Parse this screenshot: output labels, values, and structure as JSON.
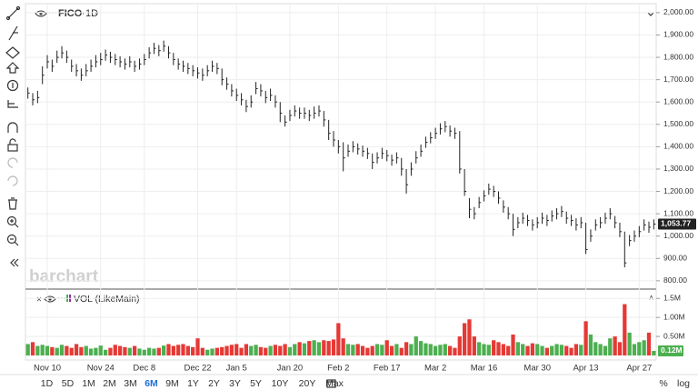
{
  "chart_data": [
    {
      "type": "ohlc",
      "symbol": "FICO",
      "interval": "1D",
      "color": "#222222",
      "grid": true,
      "ylim": [
        771,
        2024
      ],
      "yticks": [
        {
          "value": 800,
          "label": "800.00"
        },
        {
          "value": 900,
          "label": "900.00"
        },
        {
          "value": 1000,
          "label": "1,000.00"
        },
        {
          "value": 1100,
          "label": "1,100.00"
        },
        {
          "value": 1200,
          "label": "1,200.00"
        },
        {
          "value": 1300,
          "label": "1,300.00"
        },
        {
          "value": 1400,
          "label": "1,400.00"
        },
        {
          "value": 1500,
          "label": "1,500.00"
        },
        {
          "value": 1600,
          "label": "1,600.00"
        },
        {
          "value": 1700,
          "label": "1,700.00"
        },
        {
          "value": 1800,
          "label": "1,800.00"
        },
        {
          "value": 1900,
          "label": "1,900.00"
        },
        {
          "value": 2000,
          "label": "2,000.00"
        }
      ],
      "last_value_label": "1,053.77",
      "high": [
        1665,
        1640,
        1650,
        1760,
        1810,
        1790,
        1830,
        1850,
        1830,
        1790,
        1770,
        1750,
        1770,
        1790,
        1810,
        1820,
        1835,
        1825,
        1815,
        1805,
        1795,
        1805,
        1785,
        1795,
        1815,
        1845,
        1865,
        1855,
        1875,
        1850,
        1820,
        1795,
        1785,
        1775,
        1765,
        1755,
        1750,
        1765,
        1785,
        1775,
        1750,
        1710,
        1680,
        1660,
        1640,
        1610,
        1630,
        1690,
        1680,
        1650,
        1660,
        1630,
        1600,
        1540,
        1565,
        1585,
        1575,
        1575,
        1565,
        1580,
        1585,
        1560,
        1520,
        1470,
        1430,
        1420,
        1410,
        1425,
        1415,
        1405,
        1395,
        1370,
        1375,
        1395,
        1385,
        1365,
        1375,
        1350,
        1300,
        1330,
        1380,
        1410,
        1445,
        1465,
        1485,
        1505,
        1515,
        1495,
        1485,
        1470,
        1300,
        1170,
        1130,
        1175,
        1205,
        1235,
        1225,
        1200,
        1160,
        1130,
        1100,
        1085,
        1105,
        1095,
        1075,
        1085,
        1105,
        1095,
        1115,
        1125,
        1135,
        1110,
        1095,
        1080,
        1085,
        1060,
        1030,
        1075,
        1085,
        1105,
        1125,
        1090,
        1060,
        1020,
        1005,
        1025,
        1045,
        1075,
        1065,
        1075
      ],
      "low": [
        1615,
        1585,
        1595,
        1680,
        1750,
        1735,
        1775,
        1795,
        1775,
        1735,
        1715,
        1695,
        1715,
        1735,
        1755,
        1765,
        1785,
        1775,
        1765,
        1755,
        1745,
        1755,
        1735,
        1745,
        1765,
        1795,
        1815,
        1805,
        1825,
        1795,
        1765,
        1745,
        1735,
        1725,
        1715,
        1705,
        1695,
        1715,
        1735,
        1725,
        1675,
        1655,
        1625,
        1605,
        1585,
        1555,
        1575,
        1635,
        1625,
        1595,
        1605,
        1575,
        1510,
        1490,
        1515,
        1535,
        1525,
        1525,
        1515,
        1525,
        1535,
        1490,
        1430,
        1400,
        1370,
        1290,
        1355,
        1375,
        1365,
        1355,
        1345,
        1300,
        1325,
        1345,
        1335,
        1315,
        1325,
        1270,
        1190,
        1270,
        1325,
        1355,
        1395,
        1415,
        1435,
        1455,
        1465,
        1445,
        1435,
        1280,
        1180,
        1080,
        1075,
        1125,
        1155,
        1185,
        1175,
        1145,
        1105,
        1075,
        1000,
        1035,
        1055,
        1045,
        1025,
        1035,
        1055,
        1045,
        1065,
        1075,
        1085,
        1055,
        1045,
        1025,
        1035,
        920,
        975,
        1025,
        1035,
        1055,
        1075,
        1035,
        995,
        860,
        955,
        975,
        995,
        1025,
        1015,
        1030
      ],
      "close": [
        1640,
        1610,
        1620,
        1720,
        1780,
        1760,
        1800,
        1820,
        1800,
        1760,
        1740,
        1720,
        1740,
        1760,
        1780,
        1790,
        1810,
        1800,
        1790,
        1780,
        1770,
        1780,
        1760,
        1770,
        1790,
        1820,
        1840,
        1830,
        1850,
        1820,
        1790,
        1770,
        1760,
        1750,
        1740,
        1730,
        1720,
        1740,
        1760,
        1750,
        1700,
        1680,
        1650,
        1630,
        1610,
        1580,
        1600,
        1660,
        1650,
        1620,
        1630,
        1600,
        1550,
        1510,
        1540,
        1560,
        1550,
        1550,
        1540,
        1550,
        1560,
        1520,
        1460,
        1430,
        1400,
        1350,
        1380,
        1400,
        1390,
        1380,
        1370,
        1330,
        1350,
        1370,
        1360,
        1340,
        1350,
        1300,
        1230,
        1300,
        1350,
        1380,
        1420,
        1440,
        1460,
        1480,
        1490,
        1470,
        1460,
        1300,
        1200,
        1120,
        1100,
        1150,
        1180,
        1210,
        1200,
        1170,
        1130,
        1100,
        1030,
        1060,
        1080,
        1070,
        1050,
        1060,
        1080,
        1070,
        1090,
        1100,
        1110,
        1080,
        1070,
        1050,
        1060,
        940,
        1000,
        1050,
        1060,
        1080,
        1100,
        1060,
        1020,
        880,
        980,
        1000,
        1020,
        1050,
        1040,
        1053.77
      ]
    },
    {
      "type": "bar",
      "title": "VOL (LikeMain)",
      "up_color": "#4caf50",
      "down_color": "#e53935",
      "ylim": [
        0,
        1650000
      ],
      "yticks": [
        {
          "value": 500000,
          "label": "0.50M"
        },
        {
          "value": 1000000,
          "label": "1.00M"
        },
        {
          "value": 1500000,
          "label": "1.5M"
        }
      ],
      "last_value_label": "0.12M",
      "categories": [
        null,
        null,
        null,
        null,
        "Nov 10",
        null,
        null,
        null,
        null,
        null,
        null,
        null,
        null,
        null,
        null,
        "Nov 24",
        null,
        null,
        null,
        null,
        null,
        null,
        null,
        null,
        "Dec 8",
        null,
        null,
        null,
        null,
        null,
        null,
        null,
        null,
        null,
        null,
        "Dec 22",
        null,
        null,
        null,
        null,
        null,
        null,
        null,
        "Jan 5",
        null,
        null,
        null,
        null,
        null,
        null,
        null,
        null,
        null,
        null,
        "Jan 20",
        null,
        null,
        null,
        null,
        null,
        null,
        null,
        null,
        null,
        "Feb 2",
        null,
        null,
        null,
        null,
        null,
        null,
        null,
        null,
        null,
        "Feb 17",
        null,
        null,
        null,
        null,
        null,
        null,
        null,
        null,
        null,
        "Mar 2",
        null,
        null,
        null,
        null,
        null,
        null,
        null,
        null,
        null,
        "Mar 16",
        null,
        null,
        null,
        null,
        null,
        null,
        null,
        null,
        null,
        null,
        "Mar 30",
        null,
        null,
        null,
        null,
        null,
        null,
        null,
        null,
        null,
        "Apr 13",
        null,
        null,
        null,
        null,
        null,
        null,
        null,
        null,
        null,
        null,
        "Apr 27",
        null,
        null,
        null
      ],
      "values": [
        300000,
        350000,
        250000,
        280000,
        250000,
        220000,
        200000,
        280000,
        250000,
        200000,
        300000,
        220000,
        250000,
        180000,
        200000,
        260000,
        150000,
        200000,
        280000,
        250000,
        220000,
        200000,
        250000,
        180000,
        150000,
        200000,
        180000,
        200000,
        260000,
        300000,
        250000,
        280000,
        300000,
        250000,
        220000,
        450000,
        200000,
        150000,
        180000,
        200000,
        220000,
        250000,
        280000,
        300000,
        200000,
        300000,
        250000,
        280000,
        220000,
        200000,
        250000,
        280000,
        250000,
        300000,
        220000,
        300000,
        350000,
        320000,
        380000,
        400000,
        350000,
        400000,
        380000,
        420000,
        850000,
        450000,
        300000,
        280000,
        300000,
        250000,
        200000,
        250000,
        300000,
        280000,
        400000,
        250000,
        300000,
        200000,
        350000,
        300000,
        500000,
        380000,
        320000,
        300000,
        250000,
        280000,
        300000,
        250000,
        200000,
        500000,
        850000,
        950000,
        500000,
        350000,
        300000,
        280000,
        400000,
        350000,
        300000,
        250000,
        550000,
        350000,
        300000,
        250000,
        320000,
        300000,
        250000,
        200000,
        250000,
        300000,
        280000,
        250000,
        200000,
        300000,
        280000,
        900000,
        550000,
        350000,
        300000,
        250000,
        450000,
        500000,
        350000,
        1350000,
        600000,
        300000,
        350000,
        400000,
        600000,
        120000
      ]
    }
  ],
  "watermark": "barchart",
  "range_buttons": [
    "1D",
    "5D",
    "1M",
    "2M",
    "3M",
    "6M",
    "9M",
    "1Y",
    "2Y",
    "3Y",
    "5Y",
    "10Y",
    "20Y",
    "Max"
  ],
  "active_range": "6M",
  "scale_buttons": [
    "%",
    "log"
  ]
}
